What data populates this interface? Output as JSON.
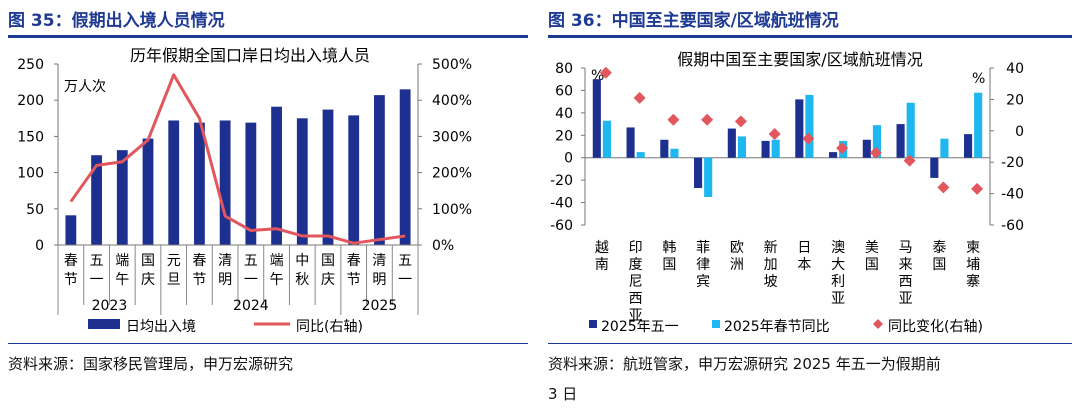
{
  "left": {
    "fig_title": "图 35：假期出入境人员情况",
    "source": "资料来源：国家移民管理局，申万宏源研究"
  },
  "right": {
    "fig_title": "图 36：中国至主要国家/区域航班情况",
    "source_line1": "资料来源：航班管家，申万宏源研究  2025 年五一为假期前",
    "source_line2": "3 日"
  },
  "colors": {
    "navy": "#1d2f8f",
    "cyan": "#1fb7ef",
    "red": "#e2575d",
    "title_blue": "#1f3a93"
  },
  "chart_data": [
    {
      "type": "bar",
      "title": "历年假期全国口岸日均出入境人员",
      "unit_label": "万人次",
      "categories": [
        "春节",
        "五一",
        "端午",
        "国庆",
        "元旦",
        "春节",
        "清明",
        "五一",
        "端午",
        "中秋",
        "国庆",
        "春节",
        "清明",
        "五一"
      ],
      "year_groups": [
        {
          "label": "2023",
          "start": 0,
          "end": 3
        },
        {
          "label": "2024",
          "start": 4,
          "end": 10
        },
        {
          "label": "2025",
          "start": 11,
          "end": 13
        }
      ],
      "series": [
        {
          "name": "日均出入境",
          "type": "bar",
          "axis": "left",
          "values": [
            41,
            124,
            131,
            147,
            172,
            169,
            172,
            169,
            191,
            175,
            187,
            179,
            207,
            215
          ]
        },
        {
          "name": "同比(右轴)",
          "type": "line",
          "axis": "right",
          "values": [
            120,
            220,
            230,
            290,
            470,
            350,
            80,
            40,
            45,
            25,
            25,
            5,
            15,
            25
          ]
        }
      ],
      "ylim": [
        0,
        250
      ],
      "yticks": [
        0,
        50,
        100,
        150,
        200,
        250
      ],
      "y2lim": [
        0,
        500
      ],
      "y2ticks": [
        "0%",
        "100%",
        "200%",
        "300%",
        "400%",
        "500%"
      ],
      "legend_position": "bottom",
      "grid": false
    },
    {
      "type": "bar",
      "title": "假期中国至主要国家/区域航班情况",
      "left_unit": "%",
      "right_unit": "%",
      "categories": [
        "越南",
        "印度尼西亚",
        "韩国",
        "菲律宾",
        "欧洲",
        "新加坡",
        "日本",
        "澳大利亚",
        "美国",
        "马来西亚",
        "泰国",
        "柬埔寨"
      ],
      "series": [
        {
          "name": "2025年五一",
          "type": "bar",
          "axis": "left",
          "values": [
            70,
            27,
            16,
            -27,
            26,
            15,
            52,
            5,
            16,
            30,
            -18,
            21
          ]
        },
        {
          "name": "2025年春节同比",
          "type": "bar",
          "axis": "left",
          "values": [
            33,
            5,
            8,
            -35,
            19,
            16,
            56,
            15,
            29,
            49,
            17,
            58
          ]
        },
        {
          "name": "同比变化(右轴)",
          "type": "scatter",
          "axis": "right",
          "values": [
            37,
            21,
            7,
            7,
            6,
            -2,
            -5,
            -11,
            -14,
            -19,
            -36,
            -37
          ]
        }
      ],
      "ylim": [
        -60,
        80
      ],
      "yticks": [
        80,
        60,
        40,
        20,
        0,
        -20,
        -40,
        -60
      ],
      "y2lim": [
        -60,
        40
      ],
      "y2ticks": [
        40,
        20,
        0,
        -20,
        -40,
        -60
      ],
      "legend_position": "bottom",
      "grid": false
    }
  ]
}
